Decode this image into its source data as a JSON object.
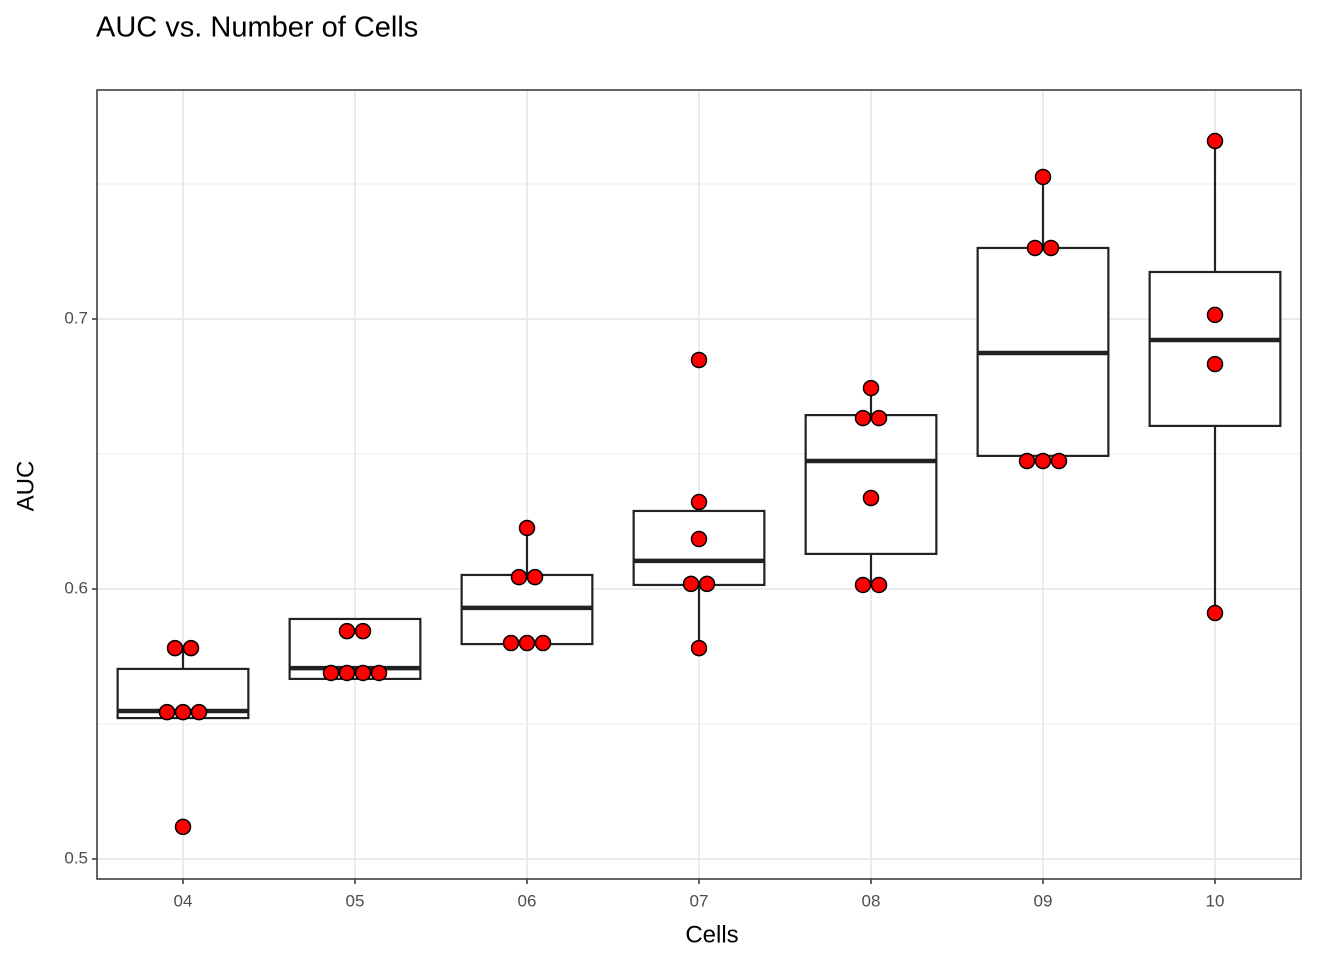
{
  "chart_data": {
    "type": "box",
    "title": "AUC vs. Number of Cells",
    "x_label": "Cells",
    "y_label": "AUC",
    "categories": [
      "04",
      "05",
      "06",
      "07",
      "08",
      "09",
      "10"
    ],
    "boxes": [
      {
        "low": 0.5522,
        "q1": 0.5522,
        "median": 0.5548,
        "q3": 0.5704,
        "high": 0.5781
      },
      {
        "low": 0.5667,
        "q1": 0.5667,
        "median": 0.5707,
        "q3": 0.5889,
        "high": 0.5889
      },
      {
        "low": 0.5796,
        "q1": 0.5796,
        "median": 0.593,
        "q3": 0.6052,
        "high": 0.6226
      },
      {
        "low": 0.5781,
        "q1": 0.6015,
        "median": 0.6104,
        "q3": 0.6289,
        "high": 0.6322
      },
      {
        "low": 0.6015,
        "q1": 0.613,
        "median": 0.6474,
        "q3": 0.6644,
        "high": 0.6744
      },
      {
        "low": 0.6493,
        "q1": 0.6493,
        "median": 0.6874,
        "q3": 0.7263,
        "high": 0.7526
      },
      {
        "low": 0.5911,
        "q1": 0.6604,
        "median": 0.6922,
        "q3": 0.7174,
        "high": 0.7659
      }
    ],
    "points": [
      [
        0.5781,
        0.5781,
        0.5544,
        0.5544,
        0.5544,
        0.5119
      ],
      [
        0.5844,
        0.5844,
        0.5689,
        0.5689,
        0.5689,
        0.5689
      ],
      [
        0.6226,
        0.6044,
        0.6044,
        0.58,
        0.58,
        0.58
      ],
      [
        0.6848,
        0.6322,
        0.6185,
        0.6019,
        0.6019,
        0.5781
      ],
      [
        0.6744,
        0.6633,
        0.6633,
        0.6337,
        0.6015,
        0.6015
      ],
      [
        0.7526,
        0.7263,
        0.7263,
        0.6474,
        0.6474,
        0.6474
      ],
      [
        0.7659,
        0.7015,
        0.6833,
        0.5911
      ]
    ],
    "point_color": "#ff0000",
    "ylim": [
      0.4926,
      0.7848
    ],
    "yticks": [
      0.5,
      0.6,
      0.7
    ],
    "y_minor_grid": [
      0.55,
      0.65,
      0.75
    ],
    "grid": true
  }
}
